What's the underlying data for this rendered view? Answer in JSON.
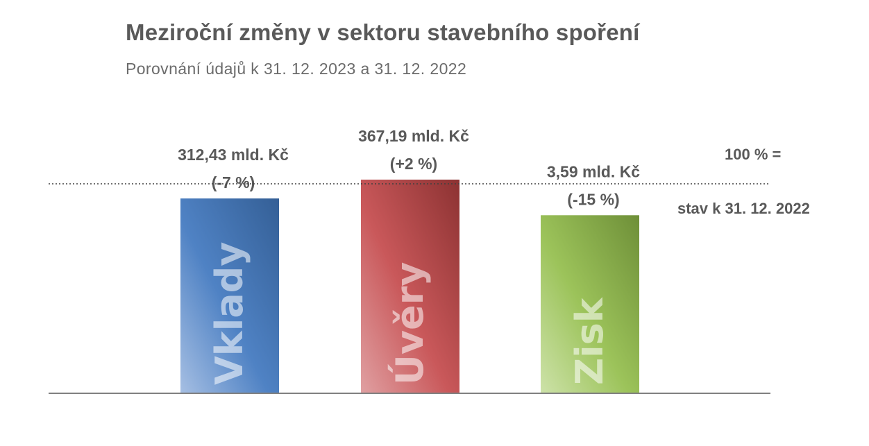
{
  "chart_data": {
    "type": "bar",
    "title": "Meziroční změny v sektoru stavebního spoření",
    "subtitle": "Porovnání údajů k 31. 12. 2023 a 31. 12. 2022",
    "categories": [
      "Vklady",
      "Úvěry",
      "Zisk"
    ],
    "values_percent_of_2022": [
      93,
      102,
      85
    ],
    "data_labels": [
      {
        "amount": "312,43 mld. Kč",
        "change": "(-7 %)"
      },
      {
        "amount": "367,19 mld. Kč",
        "change": "(+2 %)"
      },
      {
        "amount": "3,59 mld. Kč",
        "change": "(-15 %)"
      }
    ],
    "colors": [
      "#4a7ebb",
      "#c0504d",
      "#9bbb59"
    ],
    "reference_line": {
      "value": 100,
      "style": "dotted"
    },
    "ylim": [
      0,
      100
    ],
    "grid": false,
    "legend": "none"
  },
  "note": {
    "line1": "100 % =",
    "line2": "stav k 31. 12. 2022"
  }
}
